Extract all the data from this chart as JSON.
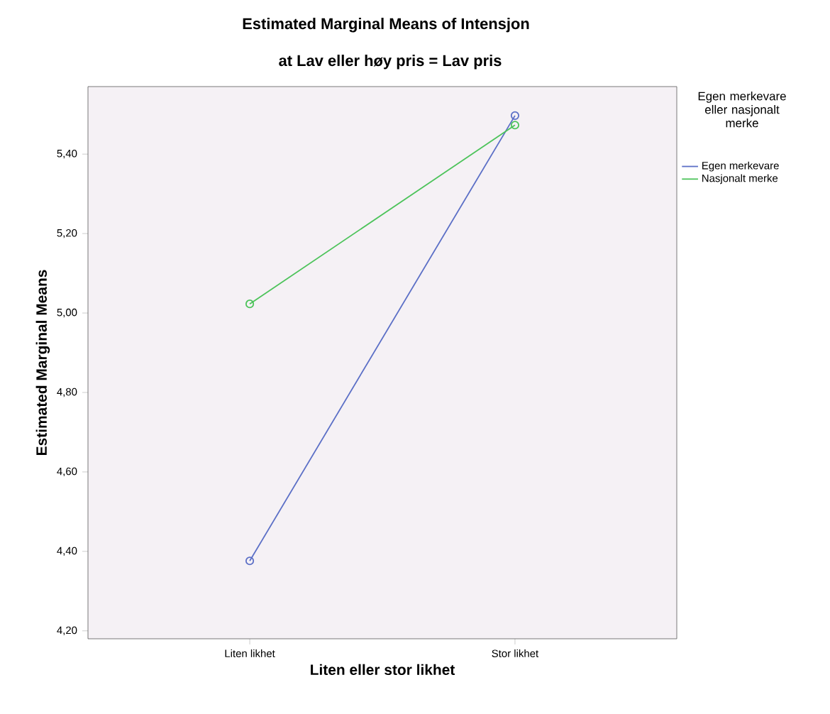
{
  "chart_data": {
    "type": "line",
    "title": "Estimated Marginal Means of Intensjon",
    "subtitle": "at Lav eller høy pris = Lav pris",
    "xlabel": "Liten eller stor likhet",
    "ylabel": "Estimated Marginal Means",
    "legend_title": "Egen merkevare eller nasjonalt merke",
    "categories": [
      "Liten likhet",
      "Stor likhet"
    ],
    "series": [
      {
        "name": "Egen merkevare",
        "color": "#5b6fc6",
        "values": [
          4.376,
          5.497
        ]
      },
      {
        "name": "Nasjonalt merke",
        "color": "#4cc35a",
        "values": [
          5.023,
          5.473
        ]
      }
    ],
    "ylim": [
      4.18,
      5.57
    ],
    "yticks": [
      {
        "value": 4.2,
        "label": "4,20"
      },
      {
        "value": 4.4,
        "label": "4,40"
      },
      {
        "value": 4.6,
        "label": "4,60"
      },
      {
        "value": 4.8,
        "label": "4,80"
      },
      {
        "value": 5.0,
        "label": "5,00"
      },
      {
        "value": 5.2,
        "label": "5,20"
      },
      {
        "value": 5.4,
        "label": "5,40"
      }
    ],
    "legend": "right",
    "marker": "circle",
    "grid": false
  }
}
